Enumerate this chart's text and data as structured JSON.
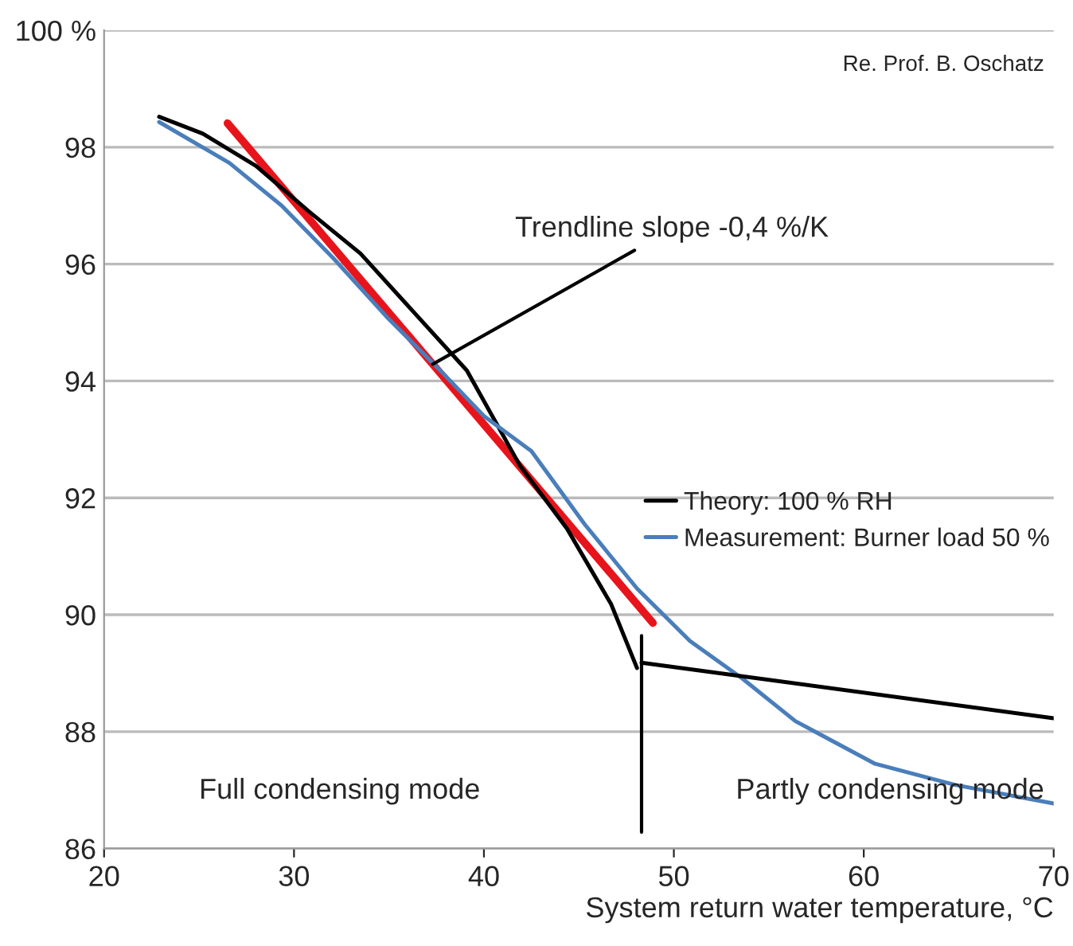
{
  "chart_data": {
    "type": "line",
    "xlabel": "System return water temperature, °C",
    "xlim": [
      20,
      70
    ],
    "xticks": [
      20,
      30,
      40,
      50,
      60,
      70
    ],
    "ylim": [
      86,
      100
    ],
    "yticks": [
      86,
      88,
      90,
      92,
      94,
      96,
      98,
      {
        "value": 100,
        "label": "100 %"
      }
    ],
    "grid": "y",
    "legend": "right",
    "series": [
      {
        "name": "Theory: 100 % RH",
        "color": "#000000",
        "x": [
          22.9,
          25.2,
          28.0,
          30.75,
          33.5,
          36.3,
          39.1,
          41.9,
          44.4,
          46.7,
          48.06
        ],
        "values": [
          98.52,
          98.23,
          97.68,
          96.91,
          96.18,
          95.18,
          94.18,
          92.55,
          91.46,
          90.18,
          89.09
        ]
      },
      {
        "name": "Measurement: Burner load 50 %",
        "color": "#4a7ebb",
        "x": [
          22.9,
          26.6,
          29.35,
          32.1,
          34.9,
          37.7,
          40.0,
          42.5,
          45.3,
          48.06,
          50.85,
          53.6,
          56.4,
          60.6,
          64.8,
          70.0
        ],
        "values": [
          98.43,
          97.73,
          97.0,
          96.09,
          95.09,
          94.18,
          93.4,
          92.8,
          91.55,
          90.45,
          89.55,
          88.91,
          88.18,
          87.45,
          87.09,
          86.77
        ]
      },
      {
        "color": "#000000",
        "x": [
          48.3,
          70.0
        ],
        "values": [
          89.18,
          88.23
        ]
      },
      {
        "color": "#e8141b",
        "x": [
          26.5,
          48.9
        ],
        "values": [
          98.41,
          89.86
        ]
      }
    ],
    "ref_lines": [
      {
        "axis": "x",
        "value": 48.3,
        "color": "#000000"
      }
    ],
    "annotations": [
      {
        "text": "Trendline slope -0,4 %/K",
        "x": 37.1,
        "y": 94.25
      },
      "Full condensing mode",
      "Partly condensing mode",
      "Re. Prof. B. Oschatz"
    ]
  }
}
